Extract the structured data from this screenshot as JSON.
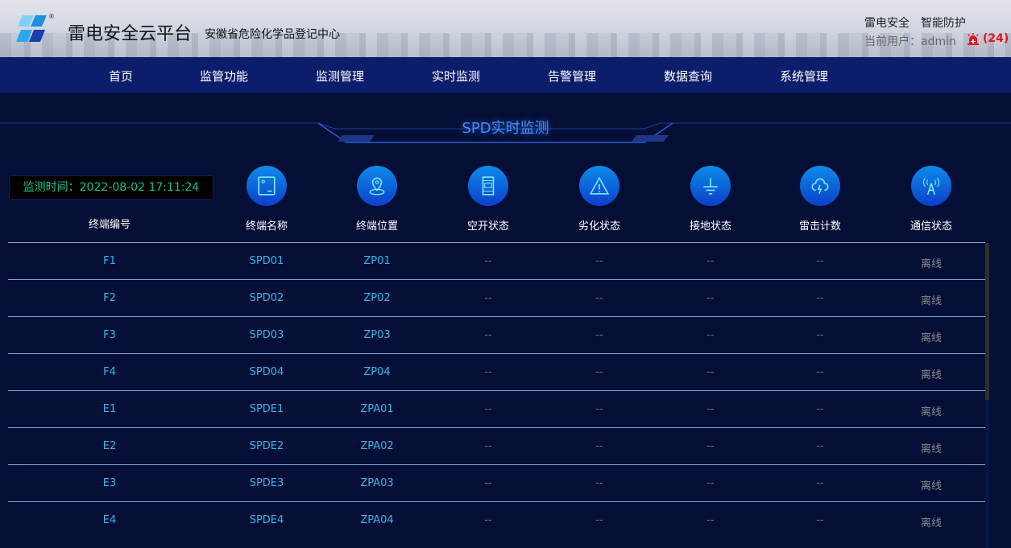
{
  "header": {
    "title": "雷电安全云平台",
    "subtitle": "安徽省危险化学品登记中心",
    "slogan1": "雷电安全",
    "slogan2": "智能防护",
    "current_user_label": "当前用户：",
    "current_user": "admin",
    "alarm_count": "(24)"
  },
  "nav": [
    "首页",
    "监管功能",
    "监测管理",
    "实时监测",
    "告警管理",
    "数据查询",
    "系统管理"
  ],
  "section_title": "SPD实时监测",
  "monitor_time": "监测时间：2022-08-02 17:11:24",
  "columns": [
    {
      "label": "终端编号",
      "icon": ""
    },
    {
      "label": "终端名称",
      "icon": "device-icon"
    },
    {
      "label": "终端位置",
      "icon": "location-pin-icon"
    },
    {
      "label": "空开状态",
      "icon": "breaker-icon"
    },
    {
      "label": "劣化状态",
      "icon": "warning-icon"
    },
    {
      "label": "接地状态",
      "icon": "ground-icon"
    },
    {
      "label": "雷击计数",
      "icon": "lightning-cloud-icon"
    },
    {
      "label": "通信状态",
      "icon": "signal-tower-icon"
    }
  ],
  "rows": [
    [
      "F1",
      "SPD01",
      "ZP01",
      "--",
      "--",
      "--",
      "--",
      "离线"
    ],
    [
      "F2",
      "SPD02",
      "ZP02",
      "--",
      "--",
      "--",
      "--",
      "离线"
    ],
    [
      "F3",
      "SPD03",
      "ZP03",
      "--",
      "--",
      "--",
      "--",
      "离线"
    ],
    [
      "F4",
      "SPD04",
      "ZP04",
      "--",
      "--",
      "--",
      "--",
      "离线"
    ],
    [
      "E1",
      "SPDE1",
      "ZPA01",
      "--",
      "--",
      "--",
      "--",
      "离线"
    ],
    [
      "E2",
      "SPDE2",
      "ZPA02",
      "--",
      "--",
      "--",
      "--",
      "离线"
    ],
    [
      "E3",
      "SPDE3",
      "ZPA03",
      "--",
      "--",
      "--",
      "--",
      "离线"
    ],
    [
      "E4",
      "SPDE4",
      "ZPA04",
      "--",
      "--",
      "--",
      "--",
      "离线"
    ]
  ],
  "colors": {
    "accent": "#2fb7ee",
    "time": "#19c08c",
    "alarm": "#e8141a",
    "nav_bg": "#0c1e6b",
    "page_bg": "#050f35"
  }
}
